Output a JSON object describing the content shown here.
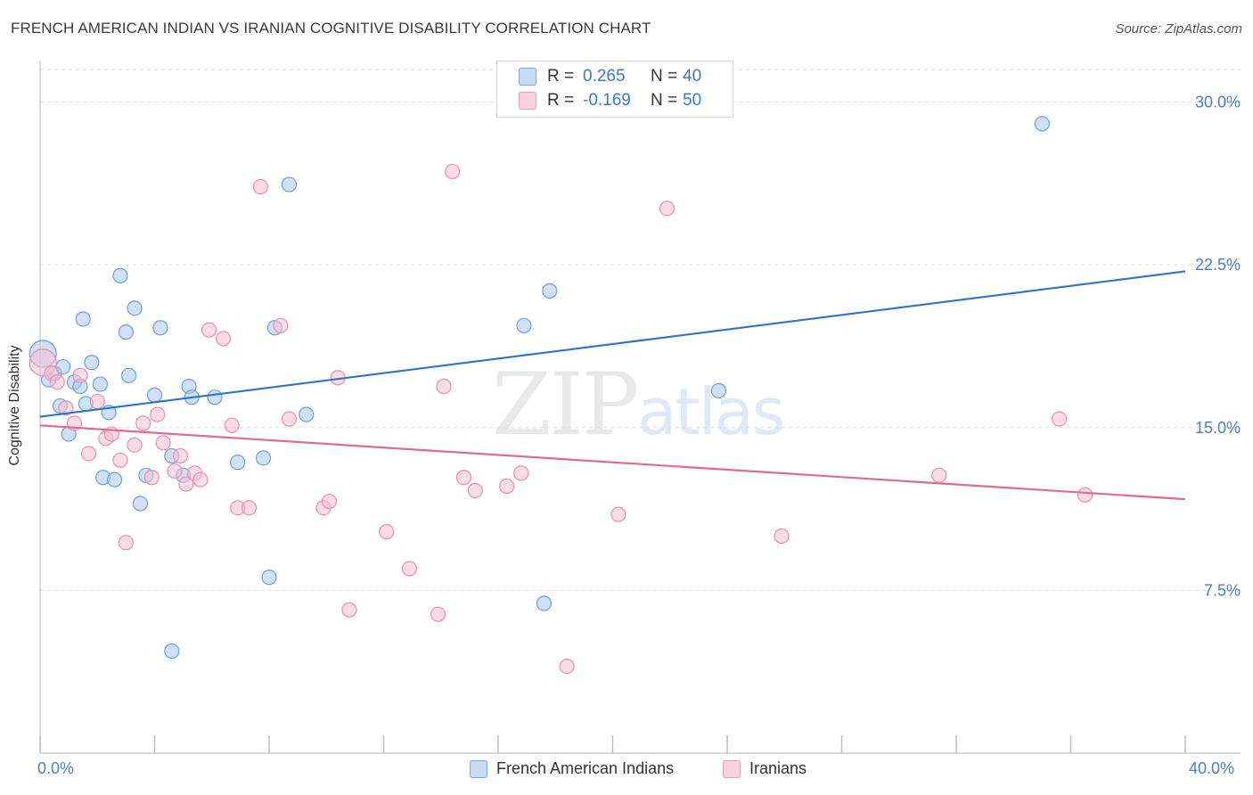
{
  "header": {
    "title": "FRENCH AMERICAN INDIAN VS IRANIAN COGNITIVE DISABILITY CORRELATION CHART",
    "source": "Source: ZipAtlas.com"
  },
  "watermark": {
    "zip": "ZIP",
    "atlas": "atlas"
  },
  "legend_top": {
    "rows": [
      {
        "r_label": "R =",
        "r_value": "0.265",
        "n_label": "N =",
        "n_value": "40"
      },
      {
        "r_label": "R =",
        "r_value": "-0.169",
        "n_label": "N =",
        "n_value": "50"
      }
    ]
  },
  "legend_bottom": {
    "items": [
      {
        "label": "French American Indians"
      },
      {
        "label": "Iranians"
      }
    ]
  },
  "colors": {
    "blue_fill": "#aac8ee",
    "blue_stroke": "#6e9fd9",
    "blue_line": "#2f72c9",
    "pink_fill": "#f6bfd1",
    "pink_stroke": "#e98fae",
    "pink_line": "#e06a95",
    "grid": "#dddddd",
    "axis_text": "#4a7fc7"
  },
  "chart_data": {
    "type": "scatter",
    "title": "FRENCH AMERICAN INDIAN VS IRANIAN COGNITIVE DISABILITY CORRELATION CHART",
    "xlabel": "",
    "ylabel": "Cognitive Disability",
    "xlim": [
      0,
      40
    ],
    "ylim": [
      0,
      31.5
    ],
    "x_tick_labels": [
      "0.0%",
      "40.0%"
    ],
    "y_ticks": [
      7.5,
      15.0,
      22.5,
      30.0
    ],
    "y_tick_labels": [
      "7.5%",
      "15.0%",
      "22.5%",
      "30.0%"
    ],
    "grid": true,
    "legend_position": "top-center",
    "series": [
      {
        "name": "French American Indians",
        "r": 0.265,
        "n": 40,
        "trend": {
          "x": [
            0,
            40
          ],
          "y": [
            15.5,
            22.2
          ]
        },
        "points": [
          {
            "x": 0.1,
            "y": 18.4,
            "big": true
          },
          {
            "x": 0.3,
            "y": 17.2
          },
          {
            "x": 0.5,
            "y": 17.5
          },
          {
            "x": 0.7,
            "y": 16.0
          },
          {
            "x": 0.8,
            "y": 17.8
          },
          {
            "x": 1.0,
            "y": 14.7
          },
          {
            "x": 1.2,
            "y": 17.1
          },
          {
            "x": 1.4,
            "y": 16.9
          },
          {
            "x": 1.5,
            "y": 20.0
          },
          {
            "x": 1.6,
            "y": 16.1
          },
          {
            "x": 1.8,
            "y": 18.0
          },
          {
            "x": 2.1,
            "y": 17.0
          },
          {
            "x": 2.2,
            "y": 12.7
          },
          {
            "x": 2.4,
            "y": 15.7
          },
          {
            "x": 2.6,
            "y": 12.6
          },
          {
            "x": 2.8,
            "y": 22.0
          },
          {
            "x": 3.0,
            "y": 19.4
          },
          {
            "x": 3.1,
            "y": 17.4
          },
          {
            "x": 3.3,
            "y": 20.5
          },
          {
            "x": 3.5,
            "y": 11.5
          },
          {
            "x": 3.7,
            "y": 12.8
          },
          {
            "x": 4.0,
            "y": 16.5
          },
          {
            "x": 4.2,
            "y": 19.6
          },
          {
            "x": 4.6,
            "y": 13.7
          },
          {
            "x": 4.6,
            "y": 4.7
          },
          {
            "x": 5.0,
            "y": 12.8
          },
          {
            "x": 5.2,
            "y": 16.9
          },
          {
            "x": 5.3,
            "y": 16.4
          },
          {
            "x": 6.1,
            "y": 16.4
          },
          {
            "x": 6.9,
            "y": 13.4
          },
          {
            "x": 7.8,
            "y": 13.6
          },
          {
            "x": 8.0,
            "y": 8.1
          },
          {
            "x": 8.2,
            "y": 19.6
          },
          {
            "x": 8.7,
            "y": 26.2
          },
          {
            "x": 9.3,
            "y": 15.6
          },
          {
            "x": 16.9,
            "y": 19.7
          },
          {
            "x": 17.6,
            "y": 6.9
          },
          {
            "x": 17.8,
            "y": 21.3
          },
          {
            "x": 23.7,
            "y": 16.7
          },
          {
            "x": 35.0,
            "y": 29.0
          }
        ]
      },
      {
        "name": "Iranians",
        "r": -0.169,
        "n": 50,
        "trend": {
          "x": [
            0,
            40
          ],
          "y": [
            15.1,
            11.7
          ]
        },
        "points": [
          {
            "x": 0.1,
            "y": 18.0,
            "big": true
          },
          {
            "x": 0.4,
            "y": 17.5
          },
          {
            "x": 0.6,
            "y": 17.1
          },
          {
            "x": 0.9,
            "y": 15.9
          },
          {
            "x": 1.2,
            "y": 15.2
          },
          {
            "x": 1.4,
            "y": 17.4
          },
          {
            "x": 1.7,
            "y": 13.8
          },
          {
            "x": 2.0,
            "y": 16.2
          },
          {
            "x": 2.3,
            "y": 14.5
          },
          {
            "x": 2.5,
            "y": 14.7
          },
          {
            "x": 2.8,
            "y": 13.5
          },
          {
            "x": 3.0,
            "y": 9.7
          },
          {
            "x": 3.3,
            "y": 14.2
          },
          {
            "x": 3.6,
            "y": 15.2
          },
          {
            "x": 3.9,
            "y": 12.7
          },
          {
            "x": 4.1,
            "y": 15.6
          },
          {
            "x": 4.3,
            "y": 14.3
          },
          {
            "x": 4.7,
            "y": 13.0
          },
          {
            "x": 4.9,
            "y": 13.7
          },
          {
            "x": 5.1,
            "y": 12.4
          },
          {
            "x": 5.4,
            "y": 12.9
          },
          {
            "x": 5.6,
            "y": 12.6
          },
          {
            "x": 5.9,
            "y": 19.5
          },
          {
            "x": 6.4,
            "y": 19.1
          },
          {
            "x": 6.7,
            "y": 15.1
          },
          {
            "x": 6.9,
            "y": 11.3
          },
          {
            "x": 7.3,
            "y": 11.3
          },
          {
            "x": 7.7,
            "y": 26.1
          },
          {
            "x": 8.4,
            "y": 19.7
          },
          {
            "x": 8.7,
            "y": 15.4
          },
          {
            "x": 9.9,
            "y": 11.3
          },
          {
            "x": 10.1,
            "y": 11.6
          },
          {
            "x": 10.4,
            "y": 17.3
          },
          {
            "x": 10.8,
            "y": 6.6
          },
          {
            "x": 12.1,
            "y": 10.2
          },
          {
            "x": 12.9,
            "y": 8.5
          },
          {
            "x": 13.9,
            "y": 6.4
          },
          {
            "x": 14.1,
            "y": 16.9
          },
          {
            "x": 14.4,
            "y": 26.8
          },
          {
            "x": 14.8,
            "y": 12.7
          },
          {
            "x": 15.2,
            "y": 12.1
          },
          {
            "x": 16.3,
            "y": 12.3
          },
          {
            "x": 16.8,
            "y": 12.9
          },
          {
            "x": 18.4,
            "y": 4.0
          },
          {
            "x": 20.2,
            "y": 11.0
          },
          {
            "x": 21.9,
            "y": 25.1
          },
          {
            "x": 25.9,
            "y": 10.0
          },
          {
            "x": 31.4,
            "y": 12.8
          },
          {
            "x": 35.6,
            "y": 15.4
          },
          {
            "x": 36.5,
            "y": 11.9
          }
        ]
      }
    ]
  }
}
